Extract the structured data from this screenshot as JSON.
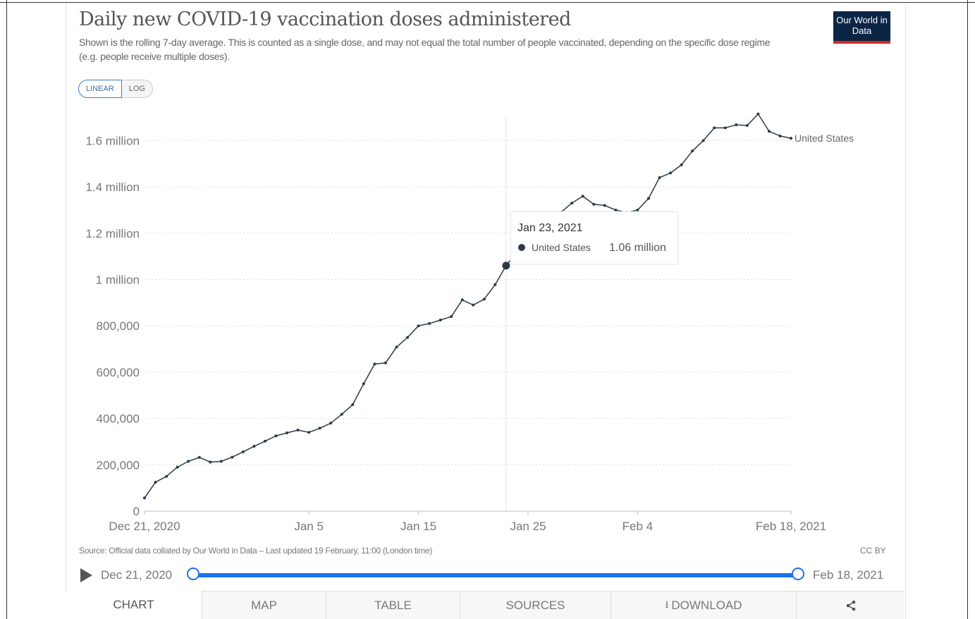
{
  "header": {
    "title": "Daily new COVID-19 vaccination doses administered",
    "subtitle": "Shown is the rolling 7-day average. This is counted as a single dose, and may not equal the total number of people vaccinated, depending on the specific dose regime (e.g. people receive multiple doses).",
    "logo_text": "Our World in Data"
  },
  "scale_toggle": {
    "linear_label": "LINEAR",
    "log_label": "LOG",
    "active": "linear"
  },
  "chart_data": {
    "type": "line",
    "title": "Daily new COVID-19 vaccination doses administered",
    "ylabel": "",
    "xlabel": "",
    "yticks": [
      {
        "value": 0,
        "label": "0"
      },
      {
        "value": 200000,
        "label": "200,000"
      },
      {
        "value": 400000,
        "label": "400,000"
      },
      {
        "value": 600000,
        "label": "600,000"
      },
      {
        "value": 800000,
        "label": "800,000"
      },
      {
        "value": 1000000,
        "label": "1 million"
      },
      {
        "value": 1200000,
        "label": "1.2 million"
      },
      {
        "value": 1400000,
        "label": "1.4 million"
      },
      {
        "value": 1600000,
        "label": "1.6 million"
      }
    ],
    "xticks": [
      {
        "date": "2020-12-21",
        "label": "Dec 21, 2020"
      },
      {
        "date": "2021-01-05",
        "label": "Jan 5"
      },
      {
        "date": "2021-01-15",
        "label": "Jan 15"
      },
      {
        "date": "2021-01-25",
        "label": "Jan 25"
      },
      {
        "date": "2021-02-04",
        "label": "Feb 4"
      },
      {
        "date": "2021-02-18",
        "label": "Feb 18, 2021"
      }
    ],
    "ylim": [
      0,
      1720000
    ],
    "xlim": [
      "2020-12-21",
      "2021-02-18"
    ],
    "grid": true,
    "series": [
      {
        "name": "United States",
        "color": "#2b3a4a",
        "points": [
          {
            "x": "2020-12-21",
            "y": 57000
          },
          {
            "x": "2020-12-22",
            "y": 125000
          },
          {
            "x": "2020-12-23",
            "y": 150000
          },
          {
            "x": "2020-12-24",
            "y": 190000
          },
          {
            "x": "2020-12-25",
            "y": 215000
          },
          {
            "x": "2020-12-26",
            "y": 232000
          },
          {
            "x": "2020-12-27",
            "y": 212000
          },
          {
            "x": "2020-12-28",
            "y": 215000
          },
          {
            "x": "2020-12-29",
            "y": 233000
          },
          {
            "x": "2020-12-30",
            "y": 256000
          },
          {
            "x": "2020-12-31",
            "y": 280000
          },
          {
            "x": "2021-01-01",
            "y": 302000
          },
          {
            "x": "2021-01-02",
            "y": 325000
          },
          {
            "x": "2021-01-03",
            "y": 338000
          },
          {
            "x": "2021-01-04",
            "y": 350000
          },
          {
            "x": "2021-01-05",
            "y": 340000
          },
          {
            "x": "2021-01-06",
            "y": 358000
          },
          {
            "x": "2021-01-07",
            "y": 380000
          },
          {
            "x": "2021-01-08",
            "y": 418000
          },
          {
            "x": "2021-01-09",
            "y": 460000
          },
          {
            "x": "2021-01-10",
            "y": 550000
          },
          {
            "x": "2021-01-11",
            "y": 635000
          },
          {
            "x": "2021-01-12",
            "y": 640000
          },
          {
            "x": "2021-01-13",
            "y": 708000
          },
          {
            "x": "2021-01-14",
            "y": 750000
          },
          {
            "x": "2021-01-15",
            "y": 800000
          },
          {
            "x": "2021-01-16",
            "y": 810000
          },
          {
            "x": "2021-01-17",
            "y": 825000
          },
          {
            "x": "2021-01-18",
            "y": 840000
          },
          {
            "x": "2021-01-19",
            "y": 912000
          },
          {
            "x": "2021-01-20",
            "y": 890000
          },
          {
            "x": "2021-01-21",
            "y": 915000
          },
          {
            "x": "2021-01-22",
            "y": 978000
          },
          {
            "x": "2021-01-23",
            "y": 1060000
          },
          {
            "x": "2021-01-24",
            "y": 1120000
          },
          {
            "x": "2021-01-25",
            "y": 1180000
          },
          {
            "x": "2021-01-26",
            "y": 1220000
          },
          {
            "x": "2021-01-27",
            "y": 1260000
          },
          {
            "x": "2021-01-28",
            "y": 1290000
          },
          {
            "x": "2021-01-29",
            "y": 1330000
          },
          {
            "x": "2021-01-30",
            "y": 1360000
          },
          {
            "x": "2021-01-31",
            "y": 1325000
          },
          {
            "x": "2021-02-01",
            "y": 1320000
          },
          {
            "x": "2021-02-02",
            "y": 1300000
          },
          {
            "x": "2021-02-03",
            "y": 1290000
          },
          {
            "x": "2021-02-04",
            "y": 1300000
          },
          {
            "x": "2021-02-05",
            "y": 1350000
          },
          {
            "x": "2021-02-06",
            "y": 1440000
          },
          {
            "x": "2021-02-07",
            "y": 1460000
          },
          {
            "x": "2021-02-08",
            "y": 1495000
          },
          {
            "x": "2021-02-09",
            "y": 1555000
          },
          {
            "x": "2021-02-10",
            "y": 1600000
          },
          {
            "x": "2021-02-11",
            "y": 1655000
          },
          {
            "x": "2021-02-12",
            "y": 1655000
          },
          {
            "x": "2021-02-13",
            "y": 1668000
          },
          {
            "x": "2021-02-14",
            "y": 1665000
          },
          {
            "x": "2021-02-15",
            "y": 1715000
          },
          {
            "x": "2021-02-16",
            "y": 1640000
          },
          {
            "x": "2021-02-17",
            "y": 1620000
          },
          {
            "x": "2021-02-18",
            "y": 1610000
          }
        ]
      }
    ],
    "tooltip": {
      "date_label": "Jan 23, 2021",
      "x": "2021-01-23",
      "series_name": "United States",
      "value_label": "1.06 million",
      "value": 1060000
    }
  },
  "footer": {
    "source": "Source: Official data collated by Our World in Data – Last updated 19 February, 11:00 (London time)",
    "license": "CC BY"
  },
  "timeline": {
    "start_label": "Dec 21, 2020",
    "end_label": "Feb 18, 2021"
  },
  "tabs": [
    {
      "id": "chart",
      "label": "CHART"
    },
    {
      "id": "map",
      "label": "MAP"
    },
    {
      "id": "table",
      "label": "TABLE"
    },
    {
      "id": "sources",
      "label": "SOURCES"
    },
    {
      "id": "download",
      "label": "DOWNLOAD",
      "icon": "download-icon"
    },
    {
      "id": "share",
      "label": "",
      "icon": "share-icon"
    }
  ],
  "active_tab": "chart"
}
